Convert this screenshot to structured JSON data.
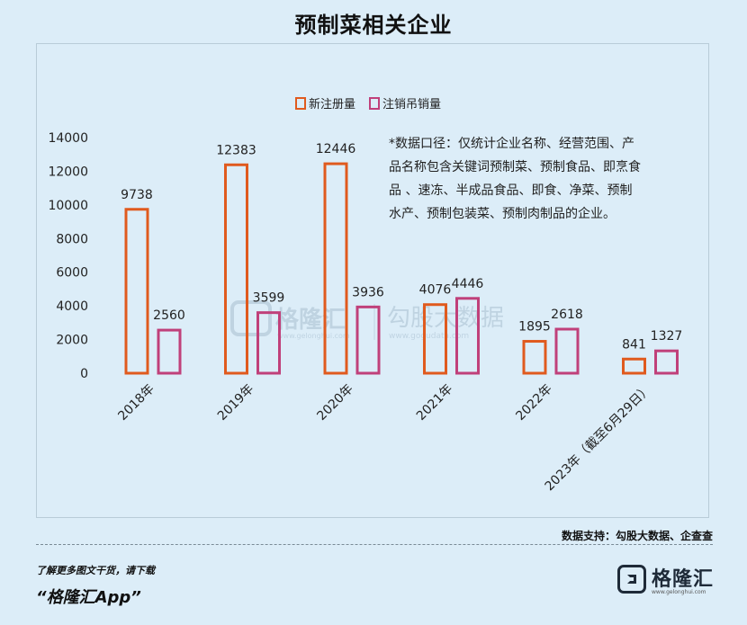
{
  "title": "预制菜相关企业",
  "chart_data": {
    "type": "bar",
    "categories": [
      "2018年",
      "2019年",
      "2020年",
      "2021年",
      "2022年",
      "2023年（截至6月29日）"
    ],
    "series": [
      {
        "name": "新注册量",
        "color": "#e05a1e",
        "values": [
          9738,
          12383,
          12446,
          4076,
          1895,
          841
        ]
      },
      {
        "name": "注销吊销量",
        "color": "#c0407a",
        "values": [
          2560,
          3599,
          3936,
          4446,
          2618,
          1327
        ]
      }
    ],
    "ylim": [
      0,
      14000
    ],
    "yticks": [
      0,
      2000,
      4000,
      6000,
      8000,
      10000,
      12000,
      14000
    ],
    "grid": false,
    "legend": "top-center",
    "note": "*数据口径：仅统计企业名称、经营范围、产品名称包含关键词预制菜、预制食品、即烹食品、速冻、半成品食品、即食、净菜、预制水产、预制包装菜、预制肉制品的企业。",
    "note_lines": [
      "*数据口径：仅统计企业名称、经营范围、产",
      "品名称包含关键词预制菜、预制食品、即烹食",
      "品 、速冻、半成品食品、即食、净菜、预制",
      "水产、预制包装菜、预制肉制品的企业。"
    ]
  },
  "watermark": {
    "brand": "格隆汇",
    "brand_url": "www.gelonghui.com",
    "data_brand": "勾股大数据",
    "data_url": "www.gogudata.com"
  },
  "source": "数据支持：勾股大数据、企查查",
  "footer": {
    "line1": "了解更多图文干货，请下载",
    "line2": "“格隆汇App”"
  },
  "brand_logo": {
    "name": "格隆汇",
    "url": "www.gelonghui.com"
  }
}
